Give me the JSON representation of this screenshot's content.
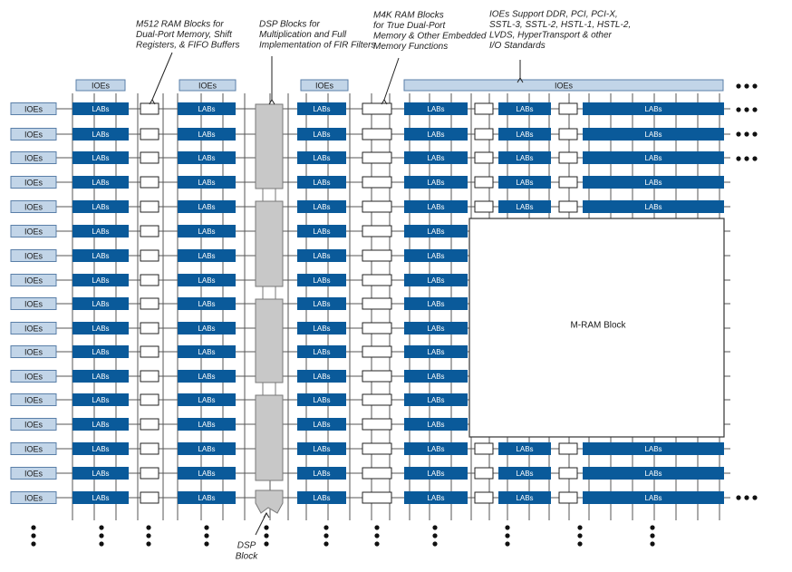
{
  "colors": {
    "lab": "#0a5a9a",
    "ioe": "#c2d5e8",
    "dsp": "#c8c8c8",
    "mram_border": "#333333",
    "line": "#555555"
  },
  "labels": {
    "ioe": "IOEs",
    "lab": "LABs",
    "mram": "M-RAM Block",
    "dsp_block": [
      "DSP",
      "Block"
    ]
  },
  "annotations": {
    "m512": [
      "M512 RAM Blocks for",
      "Dual-Port Memory, Shift",
      "Registers, & FIFO Buffers"
    ],
    "dsp": [
      "DSP Blocks for",
      "Multiplication and Full",
      "Implementation of FIR Filters"
    ],
    "m4k": [
      "M4K RAM Blocks",
      "for True Dual-Port",
      "Memory & Other Embedded",
      "Memory Functions"
    ],
    "ioe_support": [
      "IOEs Support DDR, PCI, PCI-X,",
      "SSTL-3, SSTL-2, HSTL-1, HSTL-2,",
      "LVDS, HyperTransport & other",
      "I/O Standards"
    ]
  },
  "icons": {
    "continuation": "ellipsis-dots",
    "pointer": "arrow-up"
  }
}
